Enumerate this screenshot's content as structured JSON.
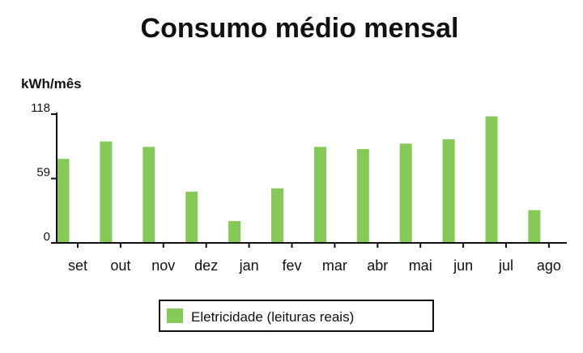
{
  "chart_data": {
    "type": "bar",
    "title": "Consumo médio mensal",
    "ylabel": "kWh/mês",
    "xlabel": "",
    "categories": [
      "set",
      "out",
      "nov",
      "dez",
      "jan",
      "fev",
      "mar",
      "abr",
      "mai",
      "jun",
      "jul",
      "ago"
    ],
    "series": [
      {
        "name": "Eletricidade (leituras reais)",
        "values": [
          77,
          93,
          88,
          47,
          20,
          50,
          88,
          86,
          91,
          95,
          116,
          30
        ]
      }
    ],
    "ylim": [
      0,
      118
    ],
    "yticks": [
      "0",
      "59",
      "118"
    ],
    "grid": false,
    "legend": "bottom",
    "colors": {
      "bar": "#85c956",
      "axis": "#111111",
      "legend_border": "#111111"
    }
  }
}
